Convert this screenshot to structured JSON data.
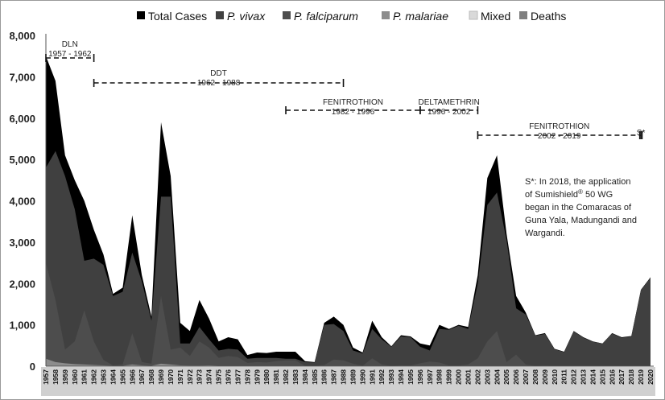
{
  "chart_data": {
    "type": "area",
    "ylim": [
      0,
      8000
    ],
    "yticks": [
      "0",
      "1,000",
      "2,000",
      "3,000",
      "4,000",
      "5,000",
      "6,000",
      "7,000",
      "8,000"
    ],
    "categories": [
      "1957",
      "1958",
      "1959",
      "1960",
      "1961",
      "1962",
      "1963",
      "1964",
      "1965",
      "1966",
      "1967",
      "1968",
      "1969",
      "1970",
      "1971",
      "1972",
      "1973",
      "1974",
      "1975",
      "1976",
      "1977",
      "1978",
      "1979",
      "1980",
      "1981",
      "1982",
      "1983",
      "1984",
      "1985",
      "1986",
      "1987",
      "1988",
      "1989",
      "1990",
      "1991",
      "1992",
      "1993",
      "1994",
      "1995",
      "1996",
      "1997",
      "1998",
      "1999",
      "2000",
      "2001",
      "2002",
      "2003",
      "2004",
      "2005",
      "2006",
      "2007",
      "2008",
      "2009",
      "2010",
      "2011",
      "2012",
      "2013",
      "2014",
      "2015",
      "2016",
      "2017",
      "2018",
      "2019",
      "2020"
    ],
    "legend": {
      "placement": "top"
    },
    "series": [
      {
        "name": "Total Cases",
        "color": "#000000",
        "values": [
          7500,
          6900,
          5100,
          4500,
          4000,
          3300,
          2700,
          1750,
          1900,
          3650,
          2200,
          1200,
          5900,
          4600,
          1050,
          850,
          1600,
          1150,
          600,
          700,
          650,
          270,
          330,
          320,
          350,
          350,
          350,
          120,
          100,
          1050,
          1200,
          1000,
          450,
          330,
          1100,
          700,
          480,
          750,
          720,
          550,
          500,
          1000,
          900,
          1000,
          950,
          2200,
          4550,
          5100,
          3200,
          1700,
          1300,
          750,
          800,
          420,
          350,
          850,
          700,
          600,
          550,
          800,
          700,
          730,
          1850,
          2150
        ]
      },
      {
        "name": "P. vivax",
        "color": "#404040",
        "values": [
          4800,
          5200,
          4600,
          3800,
          2550,
          2600,
          2450,
          1700,
          1800,
          2750,
          2050,
          1100,
          4100,
          4100,
          550,
          550,
          950,
          650,
          380,
          420,
          400,
          180,
          200,
          200,
          200,
          180,
          180,
          100,
          90,
          1000,
          1020,
          850,
          380,
          310,
          900,
          650,
          470,
          720,
          700,
          470,
          380,
          900,
          880,
          980,
          900,
          2000,
          3900,
          4200,
          3050,
          1400,
          1250,
          740,
          780,
          410,
          340,
          840,
          690,
          590,
          550,
          790,
          690,
          720,
          1840,
          2140
        ]
      },
      {
        "name": "P. falciparum",
        "color": "#4d4d4d",
        "values": [
          2500,
          1600,
          400,
          600,
          1350,
          600,
          150,
          20,
          40,
          800,
          100,
          60,
          1700,
          400,
          450,
          250,
          600,
          450,
          200,
          250,
          220,
          80,
          100,
          90,
          120,
          140,
          140,
          10,
          5,
          30,
          160,
          140,
          60,
          10,
          190,
          40,
          5,
          20,
          15,
          70,
          110,
          90,
          15,
          15,
          45,
          190,
          600,
          850,
          100,
          280,
          40,
          5,
          15,
          5,
          5,
          5,
          5,
          5,
          0,
          5,
          5,
          5,
          5,
          5
        ]
      },
      {
        "name": "P. malariae",
        "color": "#8c8c8c",
        "values": [
          180,
          100,
          70,
          50,
          40,
          30,
          20,
          10,
          10,
          40,
          20,
          10,
          60,
          40,
          20,
          15,
          15,
          20,
          10,
          10,
          10,
          5,
          5,
          5,
          5,
          5,
          5,
          2,
          2,
          5,
          5,
          5,
          2,
          2,
          5,
          5,
          2,
          2,
          2,
          2,
          2,
          2,
          2,
          2,
          2,
          5,
          10,
          10,
          5,
          5,
          2,
          2,
          2,
          2,
          2,
          2,
          2,
          2,
          2,
          2,
          2,
          2,
          2,
          2
        ]
      },
      {
        "name": "Mixed",
        "color": "#d9d9d9",
        "values": [
          20,
          0,
          0,
          0,
          0,
          0,
          0,
          0,
          0,
          0,
          0,
          0,
          0,
          0,
          0,
          0,
          0,
          0,
          0,
          0,
          0,
          0,
          0,
          0,
          0,
          0,
          0,
          0,
          0,
          0,
          0,
          0,
          0,
          0,
          0,
          0,
          0,
          0,
          0,
          0,
          0,
          0,
          0,
          0,
          0,
          0,
          0,
          0,
          0,
          0,
          0,
          0,
          0,
          0,
          0,
          0,
          0,
          0,
          0,
          0,
          0,
          0,
          0,
          0
        ]
      },
      {
        "name": "Deaths",
        "color": "#7f7f7f",
        "values": [
          20,
          10,
          10,
          5,
          5,
          5,
          5,
          2,
          2,
          10,
          5,
          2,
          10,
          10,
          2,
          2,
          2,
          2,
          2,
          2,
          2,
          0,
          0,
          0,
          0,
          0,
          0,
          0,
          0,
          0,
          0,
          0,
          0,
          0,
          0,
          0,
          0,
          0,
          0,
          0,
          0,
          0,
          0,
          0,
          0,
          0,
          0,
          0,
          0,
          0,
          0,
          0,
          0,
          0,
          0,
          0,
          0,
          0,
          0,
          0,
          0,
          0,
          0,
          0
        ]
      }
    ],
    "annotations": [
      {
        "label": "DLN",
        "period": "1957 - 1962",
        "start": "1957",
        "end": "1962"
      },
      {
        "label": "DDT",
        "period": "1962 - 1988",
        "start": "1962",
        "end": "1988"
      },
      {
        "label": "FENITROTHION",
        "period": "1982 - 1996",
        "start": "1982",
        "end": "1996"
      },
      {
        "label": "DELTAMETHRIN",
        "period": "1996 - 2002",
        "start": "1996",
        "end": "2002"
      },
      {
        "label": "FENITROTHION",
        "period": "2002 - 2019",
        "start": "2002",
        "end": "2019"
      },
      {
        "label": "S*",
        "period": "",
        "start": "2019",
        "end": "2019"
      }
    ],
    "note": {
      "line1": "S*: In 2018, the application",
      "line2a": "of Sumishield",
      "line2sup": "®",
      "line2b": " 50 WG",
      "line3": "began in the Comaracas of",
      "line4": "Guna Yala, Madungandi and",
      "line5": "Wargandi."
    }
  }
}
